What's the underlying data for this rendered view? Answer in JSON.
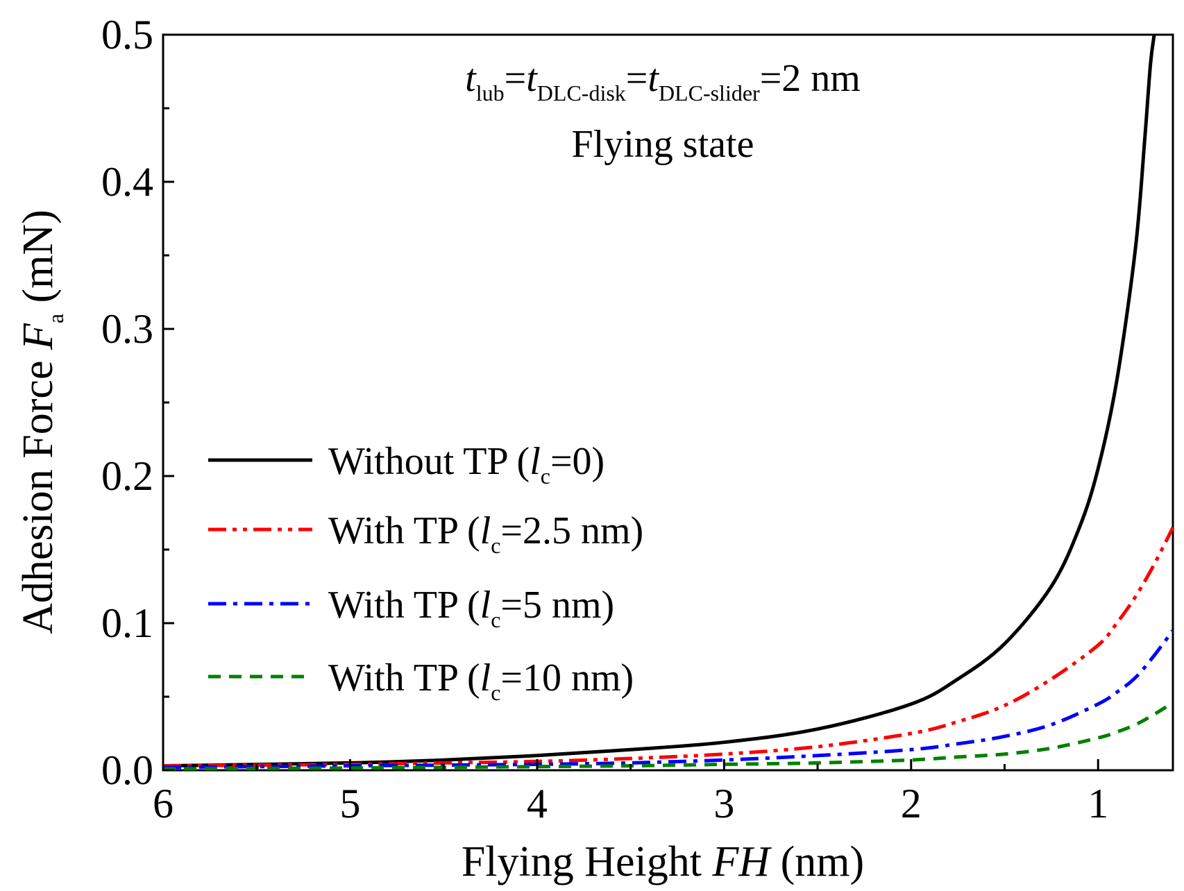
{
  "chart_data": {
    "type": "line",
    "title": "",
    "xlabel": {
      "prefix": "Flying Height ",
      "italic": "FH",
      "suffix": " (nm)"
    },
    "ylabel": {
      "prefix": "Adhesion Force ",
      "italic": "F",
      "sub": "a",
      "suffix": " (mN)"
    },
    "xlim": [
      6,
      0.6
    ],
    "ylim": [
      0,
      0.5
    ],
    "x_reversed": true,
    "x_ticks": [
      6,
      5,
      4,
      3,
      2,
      1
    ],
    "x_tick_labels": [
      "6",
      "5",
      "4",
      "3",
      "2",
      "1"
    ],
    "y_ticks": [
      0,
      0.1,
      0.2,
      0.3,
      0.4,
      0.5
    ],
    "y_tick_labels": [
      "0.0",
      "0.1",
      "0.2",
      "0.3",
      "0.4",
      "0.5"
    ],
    "grid": false,
    "legend_position": "center-left",
    "annotations": {
      "thickness": {
        "t1": "t",
        "s1": "lub",
        "eq1": "=",
        "t2": "t",
        "s2": "DLC-disk",
        "eq2": "=",
        "t3": "t",
        "s3": "DLC-slider",
        "rest": "=2 nm"
      },
      "state": "Flying state"
    },
    "series": [
      {
        "name": "Without TP (lc=0)",
        "legend": {
          "prefix": "Without TP (",
          "l": "l",
          "sub": "c",
          "suffix": "=0)"
        },
        "color": "#000000",
        "dash": "solid",
        "x": [
          6,
          5,
          4.5,
          4,
          3.5,
          3,
          2.5,
          2,
          1.75,
          1.5,
          1.25,
          1.1,
          1.0,
          0.9,
          0.8,
          0.75,
          0.72,
          0.7
        ],
        "y": [
          0.003,
          0.005,
          0.007,
          0.01,
          0.014,
          0.019,
          0.028,
          0.045,
          0.062,
          0.086,
          0.125,
          0.165,
          0.205,
          0.265,
          0.355,
          0.43,
          0.48,
          0.5
        ]
      },
      {
        "name": "With TP (lc=2.5 nm)",
        "legend": {
          "prefix": "With TP (",
          "l": "l",
          "sub": "c",
          "suffix": "=2.5 nm)"
        },
        "color": "#ff0000",
        "dash": "dashdotdot",
        "x": [
          6,
          5,
          4.5,
          4,
          3.5,
          3,
          2.5,
          2,
          1.75,
          1.5,
          1.25,
          1.0,
          0.9,
          0.8,
          0.7,
          0.6
        ],
        "y": [
          0.003,
          0.004,
          0.005,
          0.006,
          0.008,
          0.011,
          0.016,
          0.025,
          0.033,
          0.044,
          0.062,
          0.085,
          0.1,
          0.118,
          0.14,
          0.165
        ]
      },
      {
        "name": "With TP (lc=5 nm)",
        "legend": {
          "prefix": "With TP (",
          "l": "l",
          "sub": "c",
          "suffix": "=5 nm)"
        },
        "color": "#0000ff",
        "dash": "dashdot",
        "x": [
          6,
          5,
          4.5,
          4,
          3.5,
          3,
          2.5,
          2,
          1.75,
          1.5,
          1.25,
          1.0,
          0.9,
          0.8,
          0.7,
          0.6
        ],
        "y": [
          0.002,
          0.003,
          0.0035,
          0.004,
          0.005,
          0.007,
          0.01,
          0.014,
          0.018,
          0.023,
          0.031,
          0.045,
          0.053,
          0.063,
          0.078,
          0.095
        ]
      },
      {
        "name": "With TP (lc=10 nm)",
        "legend": {
          "prefix": "With TP (",
          "l": "l",
          "sub": "c",
          "suffix": "=10 nm)"
        },
        "color": "#008000",
        "dash": "dashed",
        "x": [
          6,
          5,
          4.5,
          4,
          3.5,
          3,
          2.5,
          2,
          1.75,
          1.5,
          1.25,
          1.0,
          0.9,
          0.8,
          0.7,
          0.6
        ],
        "y": [
          0.001,
          0.0015,
          0.002,
          0.0025,
          0.003,
          0.004,
          0.005,
          0.007,
          0.009,
          0.011,
          0.015,
          0.022,
          0.026,
          0.031,
          0.038,
          0.046
        ]
      }
    ]
  }
}
